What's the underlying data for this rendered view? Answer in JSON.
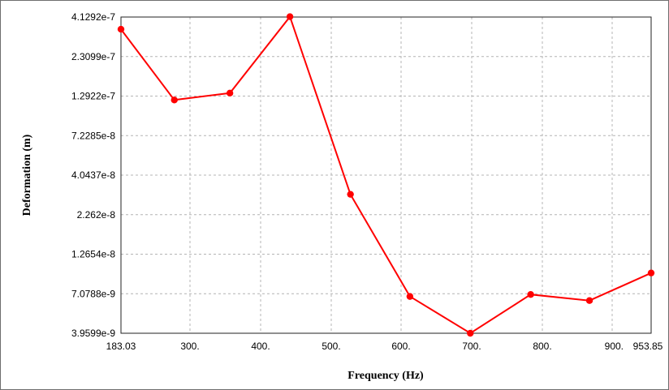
{
  "chart_data": {
    "type": "line",
    "xlabel": "Frequency (Hz)",
    "ylabel": "Deformation (m)",
    "x_ticks": [
      {
        "value": 183.03,
        "label": "183.03"
      },
      {
        "value": 300,
        "label": "300."
      },
      {
        "value": 400,
        "label": "400."
      },
      {
        "value": 500,
        "label": "500."
      },
      {
        "value": 600,
        "label": "600."
      },
      {
        "value": 700,
        "label": "700."
      },
      {
        "value": 800,
        "label": "800."
      },
      {
        "value": 900,
        "label": "900."
      },
      {
        "value": 953.85,
        "label": "953.85"
      }
    ],
    "y_ticks": [
      {
        "value": 4.1292e-07,
        "label": "4.1292e-7"
      },
      {
        "value": 2.3099e-07,
        "label": "2.3099e-7"
      },
      {
        "value": 1.2922e-07,
        "label": "1.2922e-7"
      },
      {
        "value": 7.2285e-08,
        "label": "7.2285e-8"
      },
      {
        "value": 4.0437e-08,
        "label": "4.0437e-8"
      },
      {
        "value": 2.262e-08,
        "label": "2.262e-8"
      },
      {
        "value": 1.2654e-08,
        "label": "1.2654e-8"
      },
      {
        "value": 7.0788e-09,
        "label": "7.0788e-9"
      },
      {
        "value": 3.9599e-09,
        "label": "3.9599e-9"
      }
    ],
    "xlim": [
      183.03,
      953.85
    ],
    "ylim": [
      3.9599e-09,
      4.1292e-07
    ],
    "yscale": "log",
    "grid": true,
    "line_color": "#ff0000",
    "series": [
      {
        "x": [
          183.03,
          273.5,
          356.5,
          441.5,
          527.5,
          612.5,
          698.0,
          783.5,
          867.5,
          953.85
        ],
        "y": [
          3.45e-07,
          1.22e-07,
          1.35e-07,
          4.15e-07,
          3.05e-08,
          6.8e-09,
          3.96e-09,
          7e-09,
          6.4e-09,
          9.6e-09
        ]
      }
    ]
  }
}
